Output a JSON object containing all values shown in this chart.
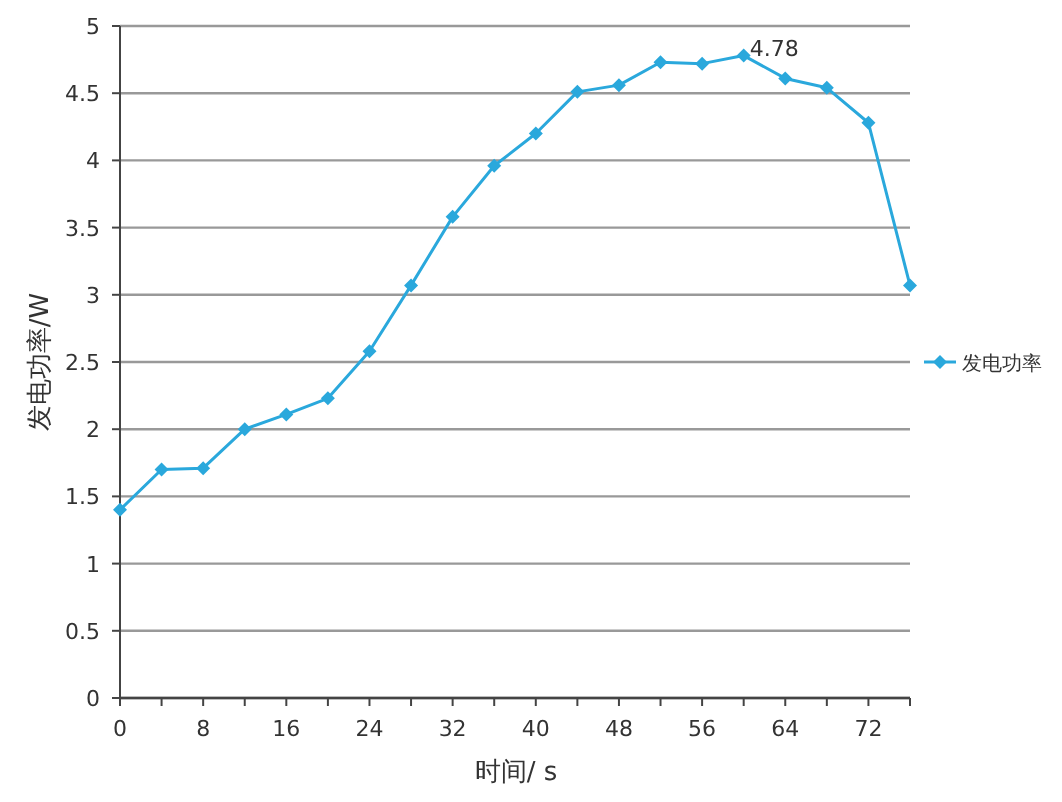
{
  "chart_data": {
    "type": "line",
    "xlabel": "时间/ s",
    "ylabel": "发电功率/W",
    "x": [
      0,
      4,
      8,
      12,
      16,
      20,
      24,
      28,
      32,
      36,
      40,
      44,
      48,
      52,
      56,
      60,
      64,
      68,
      72,
      76
    ],
    "series": [
      {
        "name": "发电功率",
        "color": "#2aa8dc",
        "values": [
          1.4,
          1.7,
          1.71,
          2.0,
          2.11,
          2.23,
          2.58,
          3.07,
          3.58,
          3.96,
          4.2,
          4.51,
          4.56,
          4.73,
          4.72,
          4.78,
          4.61,
          4.54,
          4.28,
          3.07
        ]
      }
    ],
    "annotations": [
      {
        "text": "4.78",
        "x": 60,
        "y": 4.78
      }
    ],
    "xlim": [
      0,
      76
    ],
    "xticks": [
      0,
      {
        "value": 4,
        "label": null
      },
      8,
      {
        "value": 12,
        "label": null
      },
      16,
      {
        "value": 20,
        "label": null
      },
      24,
      {
        "value": 28,
        "label": null
      },
      32,
      {
        "value": 36,
        "label": null
      },
      40,
      {
        "value": 44,
        "label": null
      },
      48,
      {
        "value": 52,
        "label": null
      },
      56,
      {
        "value": 60,
        "label": null
      },
      64,
      {
        "value": 68,
        "label": null
      },
      72,
      {
        "value": 76,
        "label": null
      }
    ],
    "ylim": [
      0,
      5
    ],
    "yticks": [
      0,
      0.5,
      1,
      1.5,
      2,
      2.5,
      3,
      3.5,
      4,
      4.5,
      5
    ],
    "grid": "y",
    "legend": "right",
    "marker": "diamond",
    "line_style": "solid"
  }
}
